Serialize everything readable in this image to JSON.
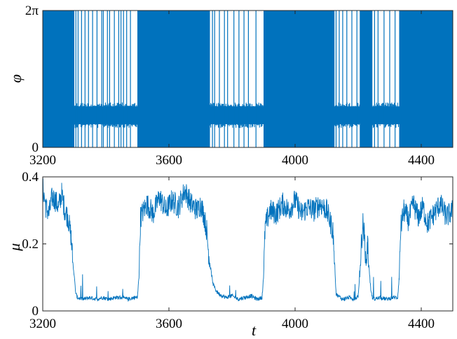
{
  "chart_data": [
    {
      "type": "line",
      "ylabel": "φ",
      "xlim": [
        3200,
        4500
      ],
      "ylim": [
        0,
        6.2832
      ],
      "x_ticks": [
        "3200",
        "3600",
        "4000",
        "4400"
      ],
      "x_tick_values": [
        3200,
        3600,
        4000,
        4400
      ],
      "y_ticks": [
        "0",
        "2π"
      ],
      "y_tick_values": [
        0,
        6.2832
      ],
      "color": "#0072BD",
      "grid": false,
      "bands": [
        {
          "x0": 3200,
          "x1": 3300,
          "mode": "full"
        },
        {
          "x0": 3300,
          "x1": 3500,
          "mode": "narrow"
        },
        {
          "x0": 3500,
          "x1": 3730,
          "mode": "full"
        },
        {
          "x0": 3730,
          "x1": 3900,
          "mode": "narrow"
        },
        {
          "x0": 3900,
          "x1": 4125,
          "mode": "full"
        },
        {
          "x0": 4125,
          "x1": 4205,
          "mode": "narrow"
        },
        {
          "x0": 4205,
          "x1": 4245,
          "mode": "full"
        },
        {
          "x0": 4245,
          "x1": 4330,
          "mode": "narrow"
        },
        {
          "x0": 4330,
          "x1": 4500,
          "mode": "full"
        }
      ],
      "narrow_band_range": [
        1.0,
        1.95
      ],
      "spikes": [
        3305,
        3312,
        3323,
        3334,
        3345,
        3358,
        3372,
        3387,
        3392,
        3405,
        3412,
        3427,
        3441,
        3448,
        3456,
        3466,
        3478,
        3738,
        3745,
        3760,
        3776,
        3786,
        3806,
        3822,
        3838,
        3852,
        3876,
        4130,
        4140,
        4151,
        4164,
        4180,
        4196,
        4252,
        4263,
        4282,
        4300,
        4317
      ]
    },
    {
      "type": "line",
      "xlabel": "t",
      "ylabel": "μ",
      "xlim": [
        3200,
        4500
      ],
      "ylim": [
        0,
        0.4
      ],
      "x_ticks": [
        "3200",
        "3600",
        "4000",
        "4400"
      ],
      "x_tick_values": [
        3200,
        3600,
        4000,
        4400
      ],
      "y_ticks": [
        "0",
        "0.2",
        "0.4"
      ],
      "y_tick_values": [
        0,
        0.2,
        0.4
      ],
      "color": "#0072BD",
      "grid": false,
      "series": [
        {
          "x": [
            3200,
            3210,
            3220,
            3230,
            3240,
            3250,
            3260,
            3270,
            3280,
            3290,
            3295,
            3300,
            3305,
            3310,
            3330,
            3350,
            3370,
            3390,
            3410,
            3430,
            3450,
            3470,
            3490,
            3500,
            3505,
            3510,
            3530,
            3550,
            3570,
            3590,
            3610,
            3630,
            3650,
            3670,
            3690,
            3700,
            3710,
            3720,
            3725,
            3730,
            3740,
            3750,
            3760,
            3780,
            3800,
            3820,
            3840,
            3860,
            3880,
            3895,
            3900,
            3905,
            3920,
            3940,
            3960,
            3980,
            4000,
            4020,
            4040,
            4060,
            4080,
            4100,
            4110,
            4120,
            4125,
            4130,
            4150,
            4170,
            4190,
            4200,
            4205,
            4210,
            4215,
            4220,
            4225,
            4230,
            4235,
            4240,
            4245,
            4250,
            4270,
            4290,
            4310,
            4325,
            4330,
            4335,
            4345,
            4360,
            4375,
            4390,
            4405,
            4420,
            4440,
            4460,
            4480,
            4500
          ],
          "y": [
            0.37,
            0.31,
            0.29,
            0.34,
            0.33,
            0.31,
            0.35,
            0.3,
            0.28,
            0.22,
            0.15,
            0.1,
            0.05,
            0.04,
            0.035,
            0.04,
            0.035,
            0.04,
            0.035,
            0.04,
            0.04,
            0.035,
            0.04,
            0.04,
            0.1,
            0.28,
            0.32,
            0.29,
            0.34,
            0.3,
            0.33,
            0.31,
            0.36,
            0.32,
            0.3,
            0.32,
            0.29,
            0.24,
            0.18,
            0.14,
            0.08,
            0.06,
            0.05,
            0.04,
            0.045,
            0.035,
            0.04,
            0.045,
            0.035,
            0.04,
            0.1,
            0.25,
            0.3,
            0.29,
            0.32,
            0.3,
            0.33,
            0.29,
            0.31,
            0.3,
            0.32,
            0.3,
            0.27,
            0.24,
            0.15,
            0.05,
            0.035,
            0.04,
            0.035,
            0.045,
            0.1,
            0.2,
            0.26,
            0.22,
            0.14,
            0.2,
            0.12,
            0.06,
            0.04,
            0.035,
            0.04,
            0.035,
            0.04,
            0.04,
            0.1,
            0.25,
            0.3,
            0.27,
            0.32,
            0.28,
            0.31,
            0.26,
            0.29,
            0.32,
            0.28,
            0.3
          ]
        }
      ]
    }
  ]
}
